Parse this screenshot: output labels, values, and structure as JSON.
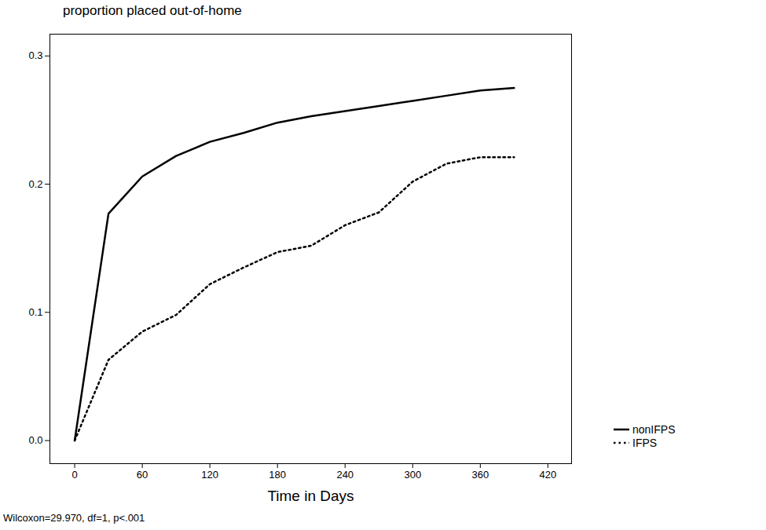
{
  "chart_data": {
    "type": "line",
    "title": "proportion placed out-of-home",
    "x_label": "Time in Days",
    "annotations": [
      "Wilcoxon=29.970, df=1, p<.001"
    ],
    "x": [
      0,
      30,
      60,
      90,
      120,
      150,
      180,
      210,
      240,
      270,
      300,
      330,
      360,
      390
    ],
    "series": [
      {
        "name": "nonIFPS",
        "color": "#000000",
        "line_style": "solid",
        "values": [
          0,
          0.177,
          0.206,
          0.222,
          0.233,
          0.24,
          0.248,
          0.253,
          0.257,
          0.261,
          0.265,
          0.269,
          0.273,
          0.275
        ]
      },
      {
        "name": "IFPS",
        "color": "#000000",
        "line_style": "dotted",
        "values": [
          0,
          0.063,
          0.085,
          0.098,
          0.122,
          0.135,
          0.147,
          0.152,
          0.168,
          0.178,
          0.202,
          0.216,
          0.221,
          0.221
        ]
      }
    ],
    "xlim": [
      -22,
      441
    ],
    "xticks": [
      0,
      60,
      120,
      180,
      240,
      300,
      360,
      420
    ],
    "ylim": [
      -0.018,
      0.317
    ],
    "yticks": [
      {
        "value": 0,
        "label": "0.0"
      },
      {
        "value": 0.1,
        "label": "0.1"
      },
      {
        "value": 0.2,
        "label": "0.2"
      },
      {
        "value": 0.3,
        "label": "0.3"
      }
    ],
    "grid": false,
    "legend": "right"
  }
}
